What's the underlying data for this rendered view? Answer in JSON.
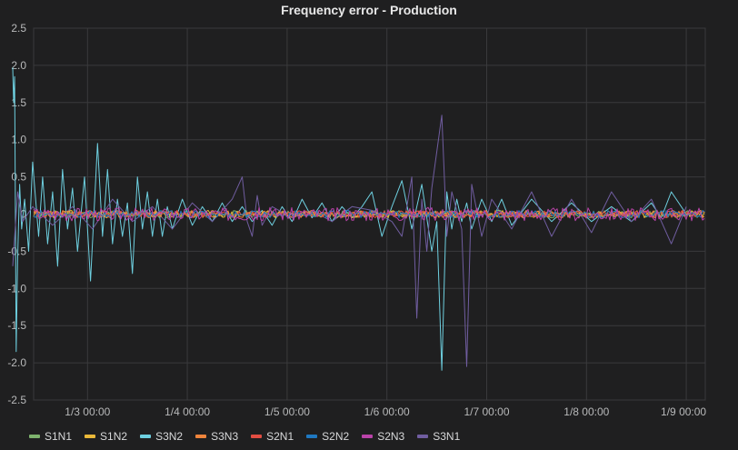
{
  "panel": {
    "title": "Frequency error - Production"
  },
  "chart_data": {
    "type": "line",
    "title": "Frequency error - Production",
    "xlabel": "",
    "ylabel": "",
    "ylim": [
      -2.5,
      2.5
    ],
    "xlim": [
      "1/2 06:00",
      "1/9 00:00"
    ],
    "y_ticks": [
      "2.5",
      "2.0",
      "1.5",
      "1.0",
      "0.5",
      "0",
      "-0.5",
      "-1.0",
      "-1.5",
      "-2.0",
      "-2.5"
    ],
    "x_ticks": [
      "1/3 00:00",
      "1/4 00:00",
      "1/5 00:00",
      "1/6 00:00",
      "1/7 00:00",
      "1/8 00:00",
      "1/9 00:00"
    ],
    "grid": true,
    "legend_position": "bottom-left",
    "series": [
      {
        "name": "S1N1",
        "color": "#7eb26d",
        "x_days": [
          0,
          6.75
        ],
        "values": [
          0,
          0
        ]
      },
      {
        "name": "S1N2",
        "color": "#eab839",
        "x_days": [
          0,
          6.75
        ],
        "values": [
          0,
          0
        ]
      },
      {
        "name": "S3N2",
        "color": "#6ed0e0",
        "x_days": [
          0.0,
          0.01,
          0.02,
          0.035,
          0.05,
          0.07,
          0.09,
          0.12,
          0.16,
          0.2,
          0.26,
          0.3,
          0.35,
          0.4,
          0.45,
          0.5,
          0.55,
          0.6,
          0.65,
          0.72,
          0.78,
          0.85,
          0.9,
          0.95,
          1.0,
          1.05,
          1.1,
          1.15,
          1.2,
          1.25,
          1.3,
          1.35,
          1.4,
          1.45,
          1.5,
          1.55,
          1.6,
          1.7,
          1.8,
          1.9,
          2.0,
          2.1,
          2.2,
          2.3,
          2.4,
          2.5,
          2.6,
          2.7,
          2.8,
          2.9,
          3.0,
          3.1,
          3.2,
          3.3,
          3.4,
          3.5,
          3.6,
          3.7,
          3.8,
          3.9,
          4.0,
          4.1,
          4.2,
          4.25,
          4.3,
          4.35,
          4.4,
          4.45,
          4.5,
          4.55,
          4.6,
          4.7,
          4.8,
          4.9,
          5.0,
          5.2,
          5.4,
          5.6,
          5.8,
          6.0,
          6.2,
          6.4,
          6.5,
          6.6,
          6.75
        ],
        "values": [
          1.97,
          1.5,
          1.85,
          -1.85,
          -0.6,
          0.4,
          -0.2,
          0.2,
          -0.5,
          0.7,
          -0.3,
          0.5,
          -0.4,
          0.3,
          -0.7,
          0.6,
          -0.2,
          0.35,
          -0.5,
          0.5,
          -0.9,
          0.95,
          -0.3,
          0.6,
          -0.4,
          0.2,
          -0.3,
          0.15,
          -0.8,
          0.5,
          -0.2,
          0.3,
          -0.3,
          0.2,
          -0.3,
          0.1,
          -0.2,
          0.2,
          -0.15,
          0.1,
          -0.1,
          0.15,
          -0.1,
          0.1,
          -0.1,
          0.05,
          -0.15,
          0.1,
          -0.1,
          0.2,
          -0.05,
          0.15,
          -0.1,
          0.1,
          -0.05,
          0.1,
          0.3,
          -0.3,
          0.1,
          0.45,
          -0.2,
          0.4,
          -0.5,
          -0.1,
          -2.1,
          0.3,
          -0.2,
          0.2,
          -0.1,
          0.15,
          -0.2,
          0.2,
          -0.1,
          0.2,
          -0.15,
          0.2,
          -0.1,
          0.15,
          -0.1,
          0.1,
          -0.1,
          0.15,
          -0.05,
          0.3,
          0.0
        ]
      },
      {
        "name": "S3N3",
        "color": "#ef843c",
        "x_days": [
          0,
          6.75
        ],
        "values": [
          0,
          0
        ]
      },
      {
        "name": "S2N1",
        "color": "#e24d42",
        "x_days": [
          0,
          6.75
        ],
        "values": [
          0,
          0
        ]
      },
      {
        "name": "S2N2",
        "color": "#1f78c1",
        "x_days": [
          0,
          6.75
        ],
        "values": [
          0,
          0
        ]
      },
      {
        "name": "S2N3",
        "color": "#ba43a9",
        "x_days": [
          0,
          6.75
        ],
        "values": [
          0,
          0
        ]
      },
      {
        "name": "S3N1",
        "color": "#705da0",
        "x_days": [
          0.0,
          0.05,
          0.1,
          0.2,
          0.4,
          0.6,
          0.8,
          1.0,
          1.2,
          1.4,
          1.6,
          1.8,
          2.0,
          2.2,
          2.3,
          2.35,
          2.4,
          2.45,
          2.5,
          2.6,
          2.8,
          3.0,
          3.2,
          3.4,
          3.6,
          3.8,
          3.9,
          4.0,
          4.05,
          4.1,
          4.15,
          4.2,
          4.3,
          4.35,
          4.4,
          4.5,
          4.55,
          4.6,
          4.7,
          4.8,
          5.0,
          5.2,
          5.4,
          5.6,
          5.8,
          6.0,
          6.2,
          6.4,
          6.6,
          6.75
        ],
        "values": [
          -0.7,
          0.3,
          -0.1,
          0.1,
          -0.15,
          0.1,
          -0.2,
          0.2,
          -0.1,
          0.1,
          -0.2,
          0.15,
          -0.1,
          0.2,
          0.5,
          -0.1,
          -0.3,
          0.25,
          -0.15,
          0.1,
          -0.05,
          0.05,
          -0.1,
          0.1,
          0.05,
          -0.1,
          -0.3,
          0.5,
          -1.4,
          0.2,
          -0.5,
          0.35,
          1.33,
          -0.3,
          0.3,
          -0.2,
          -2.05,
          0.4,
          -0.3,
          0.2,
          -0.2,
          0.3,
          -0.3,
          0.2,
          -0.25,
          0.3,
          -0.1,
          0.2,
          -0.4,
          0.1
        ]
      }
    ]
  },
  "legend": [
    {
      "label": "S1N1",
      "color": "#7eb26d"
    },
    {
      "label": "S1N2",
      "color": "#eab839"
    },
    {
      "label": "S3N2",
      "color": "#6ed0e0"
    },
    {
      "label": "S3N3",
      "color": "#ef843c"
    },
    {
      "label": "S2N1",
      "color": "#e24d42"
    },
    {
      "label": "S2N2",
      "color": "#1f78c1"
    },
    {
      "label": "S2N3",
      "color": "#ba43a9"
    },
    {
      "label": "S3N1",
      "color": "#705da0"
    }
  ]
}
